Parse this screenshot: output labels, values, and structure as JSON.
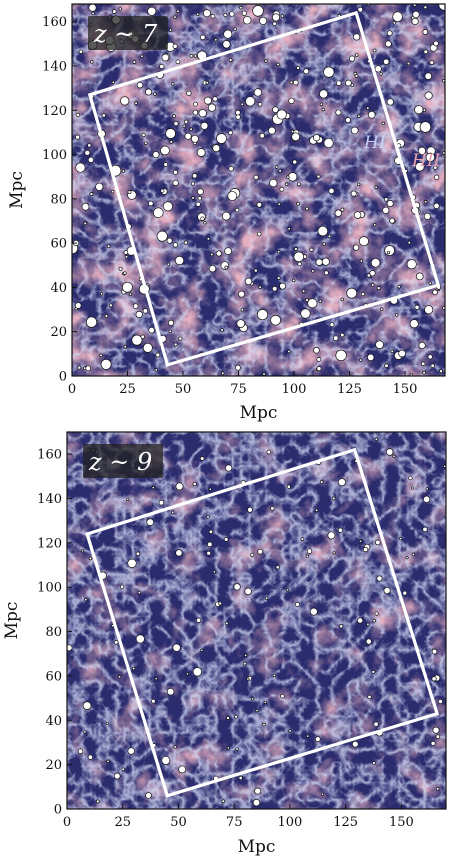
{
  "chart_data": [
    {
      "type": "scatter",
      "panel": "top",
      "redshift_label": "z ~ 7",
      "xlabel": "Mpc",
      "ylabel": "Mpc",
      "xlim": [
        0,
        168
      ],
      "ylim": [
        0,
        168
      ],
      "xticks": [
        0,
        25,
        50,
        75,
        100,
        125,
        150
      ],
      "yticks": [
        0,
        20,
        40,
        60,
        80,
        100,
        120,
        140,
        160
      ],
      "region_labels": [
        "HI",
        "HII"
      ],
      "region_colors": {
        "neutral": "#2b2c6e",
        "ionized": "#c96f86",
        "filament": "#a9b6ee"
      },
      "survey_box": [
        [
          43,
          5
        ],
        [
          165,
          41
        ],
        [
          128,
          164
        ],
        [
          8,
          127
        ]
      ],
      "marker_color": "#ffffff",
      "source_count": 420,
      "seed": 7
    },
    {
      "type": "scatter",
      "panel": "bottom",
      "redshift_label": "z ~ 9",
      "xlabel": "Mpc",
      "ylabel": "Mpc",
      "xlim": [
        0,
        170
      ],
      "ylim": [
        0,
        170
      ],
      "xticks": [
        0,
        25,
        50,
        75,
        100,
        125,
        150
      ],
      "yticks": [
        0,
        20,
        40,
        60,
        80,
        100,
        120,
        140,
        160
      ],
      "region_labels": [],
      "region_colors": {
        "neutral": "#2b2c6e",
        "ionized": "#c96f86",
        "filament": "#a9b6ee"
      },
      "survey_box": [
        [
          45,
          6
        ],
        [
          166,
          43
        ],
        [
          129,
          162
        ],
        [
          9,
          124
        ]
      ],
      "marker_color": "#ffffff",
      "source_count": 150,
      "seed": 9
    }
  ]
}
